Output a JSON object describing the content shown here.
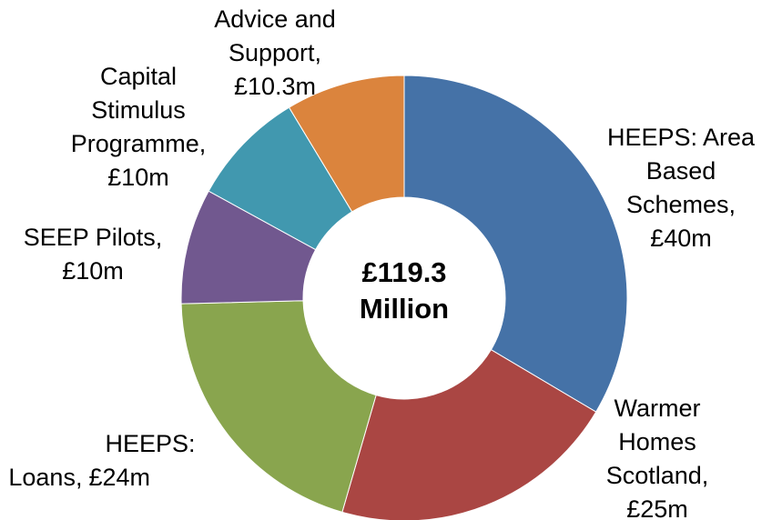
{
  "chart_data": {
    "type": "donut",
    "categories": [
      "HEEPS: Area Based Schemes,",
      "Warmer Homes Scotland,",
      "HEEPS: Loans,",
      "SEEP Pilots,",
      "Capital Stimulus Programme,",
      "Advice and Support,"
    ],
    "values": [
      40,
      25,
      24,
      10,
      10,
      10.3
    ],
    "value_labels": [
      "£40m",
      "£25m",
      "£24m",
      "£10m",
      "£10m",
      "£10.3m"
    ],
    "colors": [
      "#4572a7",
      "#aa4643",
      "#89a54e",
      "#71588f",
      "#4198af",
      "#db843d"
    ],
    "center_label": [
      "£119.3",
      "Million"
    ]
  }
}
